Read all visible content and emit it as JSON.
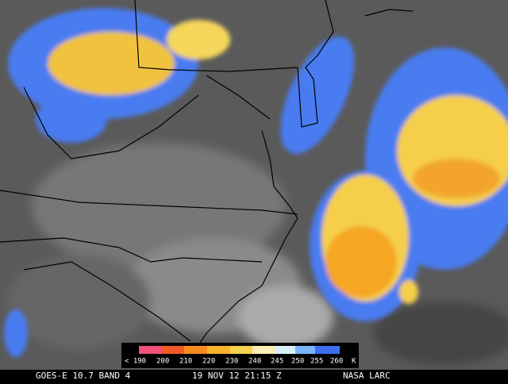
{
  "colorbar": {
    "labels": [
      "< 190",
      "200",
      "210",
      "220",
      "230",
      "240",
      "245",
      "250",
      "255",
      "260"
    ],
    "unit": "K"
  },
  "footer": {
    "satellite": "GOES-E 10.7 BAND 4",
    "datetime": "19 NOV 12 21:15 Z",
    "source": "NASA LARC"
  }
}
